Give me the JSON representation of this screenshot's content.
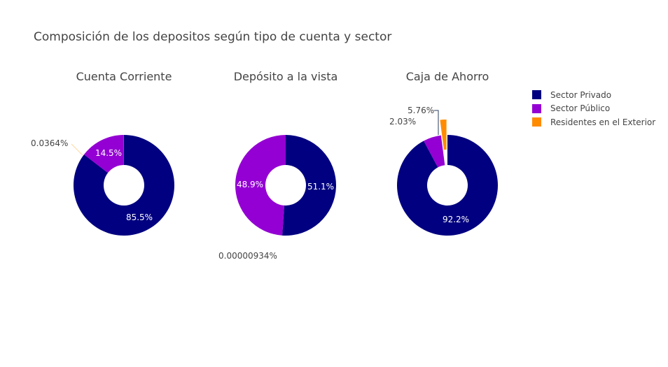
{
  "title": "Composición de los depositos según tipo de cuenta y sector",
  "colors": {
    "privado": "#000080",
    "publico": "#9400d3",
    "exterior": "#ff8c00"
  },
  "legend": [
    {
      "label": "Sector Privado",
      "color": "#000080"
    },
    {
      "label": "Sector Público",
      "color": "#9400d3"
    },
    {
      "label": "Residentes en el Exterior",
      "color": "#ff8c00"
    }
  ],
  "chart_data": [
    {
      "type": "pie",
      "title": "Cuenta Corriente",
      "hole": true,
      "labels": [
        "Sector Privado",
        "Sector Público",
        "Residentes en el Exterior"
      ],
      "values": [
        85.5,
        14.5,
        0.0364
      ],
      "value_labels": [
        "85.5%",
        "14.5%",
        "0.0364%"
      ]
    },
    {
      "type": "pie",
      "title": "Depósito a la vista",
      "hole": true,
      "labels": [
        "Sector Privado",
        "Sector Público",
        "Residentes en el Exterior"
      ],
      "values": [
        51.1,
        48.9,
        9.34e-06
      ],
      "value_labels": [
        "51.1%",
        "48.9%",
        "0.00000934%"
      ]
    },
    {
      "type": "pie",
      "title": "Caja de Ahorro",
      "hole": true,
      "labels": [
        "Sector Privado",
        "Sector Público",
        "Residentes en el Exterior"
      ],
      "values": [
        92.2,
        5.76,
        2.03
      ],
      "value_labels": [
        "92.2%",
        "5.76%",
        "2.03%"
      ],
      "pulled": "Residentes en el Exterior"
    }
  ]
}
